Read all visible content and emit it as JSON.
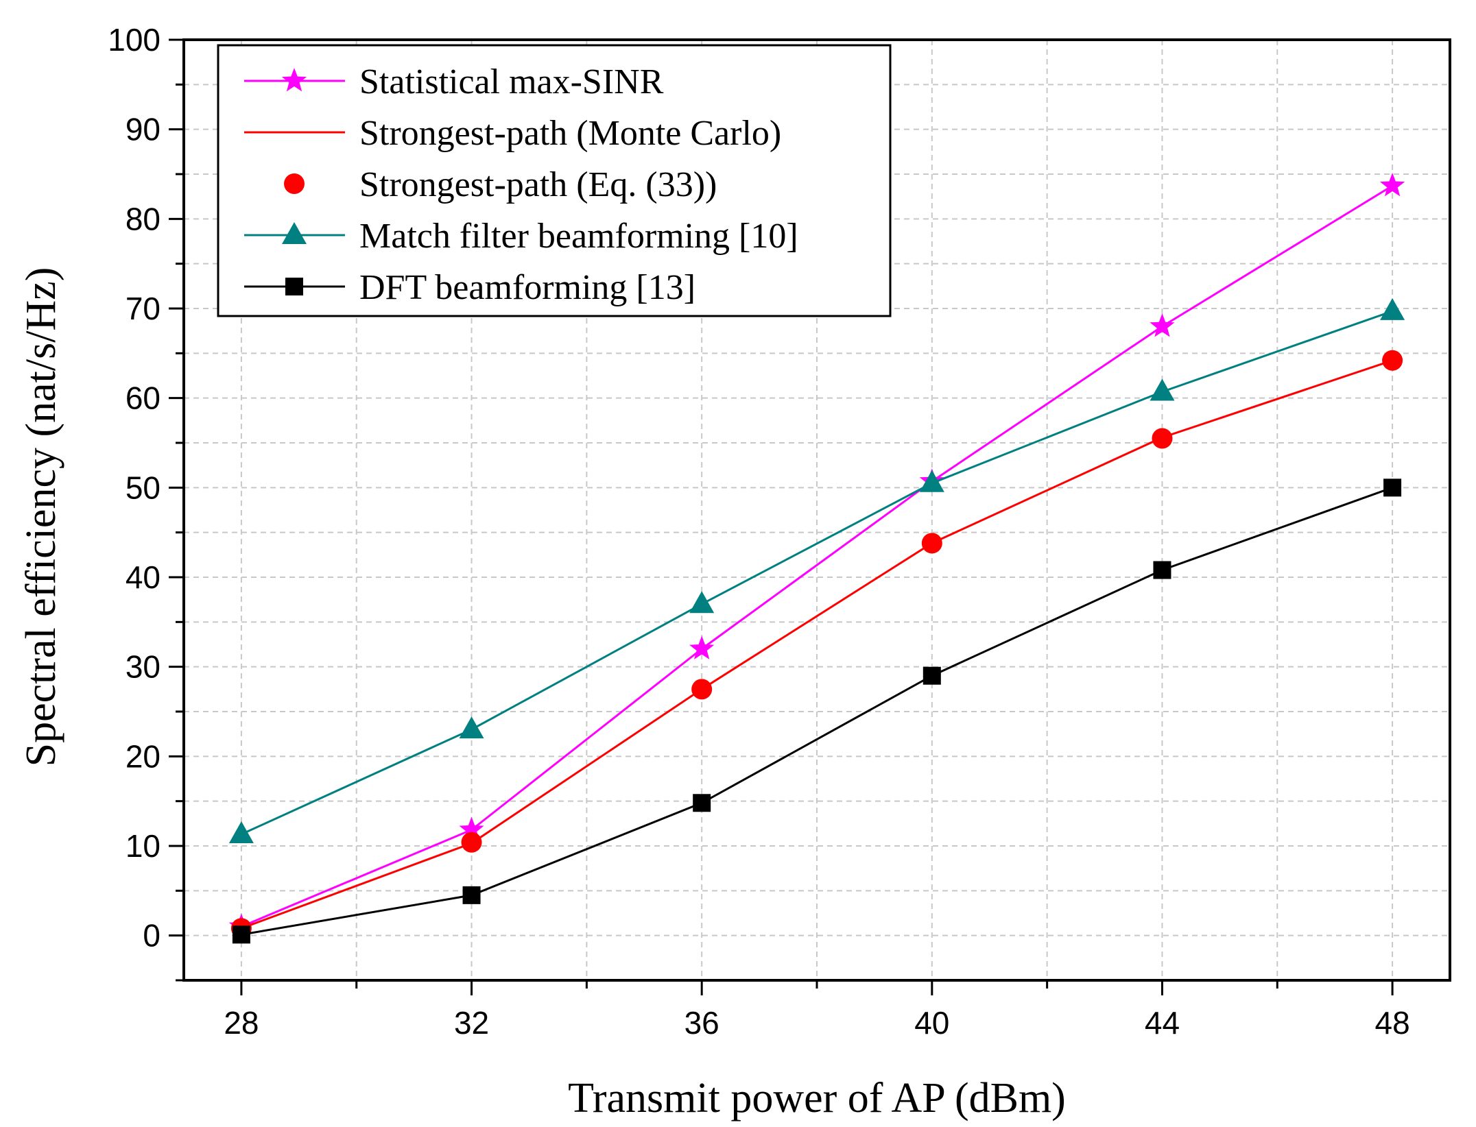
{
  "chart_data": {
    "type": "line",
    "title": "",
    "xlabel": "Transmit power of AP (dBm)",
    "ylabel": "Spectral efficiency (nat/s/Hz)",
    "x": [
      28,
      32,
      36,
      40,
      44,
      48
    ],
    "xlim": [
      27,
      49
    ],
    "ylim": [
      -5,
      100
    ],
    "xticks": [
      "28",
      "32",
      "36",
      "40",
      "44",
      "48"
    ],
    "yticks": [
      "0",
      "10",
      "20",
      "30",
      "40",
      "50",
      "60",
      "70",
      "80",
      "90",
      "100"
    ],
    "grid": true,
    "legend_position": "top-left",
    "series": [
      {
        "name": "Statistical max-SINR",
        "values": [
          1.0,
          11.8,
          32.0,
          50.7,
          68.0,
          83.7
        ],
        "color": "#FF00FF",
        "marker": "star",
        "line": true,
        "show_marker": true
      },
      {
        "name": "Strongest-path (Monte Carlo)",
        "values": [
          0.8,
          10.3,
          27.5,
          43.8,
          55.6,
          64.2
        ],
        "color": "#FF0000",
        "marker": "none",
        "line": true,
        "show_marker": false
      },
      {
        "name": "Strongest-path (Eq. (33))",
        "values": [
          0.8,
          10.4,
          27.5,
          43.8,
          55.5,
          64.2
        ],
        "color": "#FF0000",
        "marker": "circle",
        "line": false,
        "show_marker": true
      },
      {
        "name": "Match filter beamforming [10]",
        "values": [
          11.3,
          23.0,
          37.0,
          50.5,
          60.7,
          69.7
        ],
        "color": "#008080",
        "marker": "triangle",
        "line": true,
        "show_marker": true
      },
      {
        "name": "DFT beamforming [13]",
        "values": [
          0.1,
          4.5,
          14.8,
          29.0,
          40.8,
          50.0
        ],
        "color": "#000000",
        "marker": "square",
        "line": true,
        "show_marker": true
      }
    ]
  }
}
